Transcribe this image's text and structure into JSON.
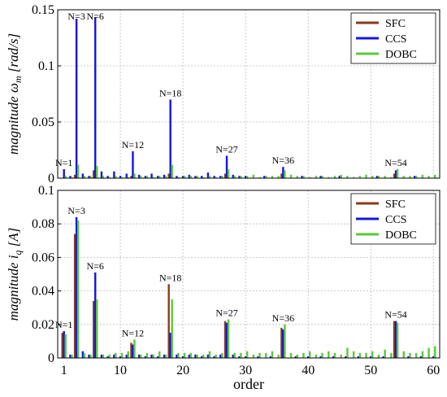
{
  "chart_data": [
    {
      "type": "bar",
      "ylabel": "magnitude ω_m [rad/s]",
      "ylim": [
        0,
        0.15
      ],
      "yticks": [
        0,
        0.05,
        0.1,
        0.15
      ],
      "yticklabels": [
        "0",
        "0.05",
        "0.1",
        "0.15"
      ],
      "xlim": [
        0,
        61
      ],
      "grid": true,
      "legend_position": "top-right",
      "series": [
        {
          "name": "SFC",
          "color": "#8b3a17",
          "x": [
            3,
            6,
            12,
            18,
            27,
            36,
            54
          ],
          "values": [
            0.003,
            0.007,
            0.002,
            0.004,
            0.004,
            0.004,
            0.004
          ]
        },
        {
          "name": "CCS",
          "color": "#1414e6",
          "x": [
            1,
            2,
            3,
            4,
            5,
            6,
            7,
            8,
            9,
            10,
            11,
            12,
            13,
            14,
            15,
            16,
            17,
            18,
            19,
            20,
            21,
            22,
            23,
            24,
            25,
            26,
            27,
            28,
            29,
            30,
            33,
            36,
            39,
            42,
            45,
            51,
            54,
            57
          ],
          "values": [
            0.008,
            0.002,
            0.142,
            0.004,
            0.002,
            0.143,
            0.006,
            0.002,
            0.006,
            0.002,
            0.004,
            0.024,
            0.003,
            0.002,
            0.004,
            0.002,
            0.003,
            0.07,
            0.002,
            0.002,
            0.003,
            0.002,
            0.002,
            0.005,
            0.002,
            0.002,
            0.02,
            0.003,
            0.002,
            0.002,
            0.002,
            0.01,
            0.002,
            0.002,
            0.002,
            0.002,
            0.007,
            0.002
          ]
        },
        {
          "name": "DOBC",
          "color": "#5ac83a",
          "x": [
            1,
            2,
            3,
            4,
            5,
            6,
            7,
            8,
            9,
            10,
            11,
            12,
            13,
            14,
            15,
            16,
            17,
            18,
            19,
            20,
            21,
            22,
            23,
            24,
            25,
            26,
            27,
            28,
            29,
            30,
            31,
            32,
            33,
            34,
            35,
            36,
            37,
            38,
            39,
            40,
            41,
            42,
            43,
            44,
            45,
            46,
            47,
            48,
            49,
            50,
            51,
            52,
            53,
            54,
            55,
            56,
            57,
            58,
            59,
            60
          ],
          "values": [
            0.002,
            0.001,
            0.012,
            0.002,
            0.002,
            0.011,
            0.002,
            0.001,
            0.002,
            0.001,
            0.001,
            0.004,
            0.002,
            0.002,
            0.001,
            0.002,
            0.002,
            0.012,
            0.001,
            0.002,
            0.002,
            0.002,
            0.001,
            0.002,
            0.001,
            0.002,
            0.008,
            0.002,
            0.002,
            0.002,
            0.003,
            0.001,
            0.002,
            0.002,
            0.002,
            0.007,
            0.003,
            0.002,
            0.002,
            0.001,
            0.002,
            0.002,
            0.001,
            0.002,
            0.003,
            0.002,
            0.001,
            0.002,
            0.003,
            0.002,
            0.002,
            0.002,
            0.001,
            0.008,
            0.002,
            0.002,
            0.002,
            0.003,
            0.002,
            0.003
          ]
        }
      ],
      "annotations": [
        {
          "text": "N=1",
          "x": 1,
          "y": 0.008
        },
        {
          "text": "N=3",
          "x": 3,
          "y": 0.142
        },
        {
          "text": "N=6",
          "x": 6,
          "y": 0.143
        },
        {
          "text": "N=12",
          "x": 12,
          "y": 0.024
        },
        {
          "text": "N=18",
          "x": 18,
          "y": 0.07
        },
        {
          "text": "N=27",
          "x": 27,
          "y": 0.02
        },
        {
          "text": "N=36",
          "x": 36,
          "y": 0.01
        },
        {
          "text": "N=54",
          "x": 54,
          "y": 0.008
        }
      ]
    },
    {
      "type": "bar",
      "ylabel": "magnitude i_q [A]",
      "xlabel": "order",
      "ylim": [
        0,
        0.1
      ],
      "yticks": [
        0,
        0.02,
        0.04,
        0.06,
        0.08,
        0.1
      ],
      "yticklabels": [
        "0",
        "0.02",
        "0.04",
        "0.06",
        "0.08",
        "0.1"
      ],
      "xlim": [
        0,
        61
      ],
      "xticks": [
        1,
        10,
        20,
        30,
        40,
        50,
        60
      ],
      "grid": true,
      "legend_position": "top-right",
      "series": [
        {
          "name": "SFC",
          "color": "#8b3a17",
          "x": [
            1,
            3,
            6,
            12,
            18,
            27,
            36,
            54
          ],
          "values": [
            0.015,
            0.074,
            0.034,
            0.009,
            0.044,
            0.022,
            0.018,
            0.022
          ]
        },
        {
          "name": "CCS",
          "color": "#1414e6",
          "x": [
            1,
            2,
            3,
            4,
            5,
            6,
            7,
            8,
            9,
            10,
            11,
            12,
            13,
            14,
            15,
            16,
            17,
            18,
            19,
            20,
            21,
            22,
            23,
            24,
            25,
            26,
            27,
            28,
            29,
            30,
            32,
            34,
            36,
            38,
            40,
            42,
            44,
            46,
            48,
            50,
            52,
            54,
            56,
            58,
            60
          ],
          "values": [
            0.016,
            0.002,
            0.084,
            0.004,
            0.002,
            0.051,
            0.002,
            0.001,
            0.002,
            0.001,
            0.002,
            0.008,
            0.002,
            0.001,
            0.002,
            0.001,
            0.002,
            0.015,
            0.002,
            0.001,
            0.002,
            0.002,
            0.001,
            0.002,
            0.001,
            0.002,
            0.021,
            0.002,
            0.001,
            0.001,
            0.001,
            0.001,
            0.017,
            0.001,
            0.001,
            0.001,
            0.001,
            0.001,
            0.001,
            0.001,
            0.001,
            0.022,
            0.001,
            0.001,
            0.001
          ]
        },
        {
          "name": "DOBC",
          "color": "#5ac83a",
          "x": [
            1,
            2,
            3,
            4,
            5,
            6,
            7,
            8,
            9,
            10,
            11,
            12,
            13,
            14,
            15,
            16,
            17,
            18,
            19,
            20,
            21,
            22,
            23,
            24,
            25,
            26,
            27,
            28,
            29,
            30,
            31,
            32,
            33,
            34,
            35,
            36,
            37,
            38,
            39,
            40,
            41,
            42,
            43,
            44,
            45,
            46,
            47,
            48,
            49,
            50,
            51,
            52,
            53,
            54,
            55,
            56,
            57,
            58,
            59,
            60
          ],
          "values": [
            0.014,
            0.002,
            0.082,
            0.003,
            0.002,
            0.035,
            0.002,
            0.002,
            0.003,
            0.003,
            0.004,
            0.011,
            0.002,
            0.003,
            0.002,
            0.004,
            0.002,
            0.035,
            0.003,
            0.003,
            0.003,
            0.002,
            0.002,
            0.004,
            0.002,
            0.003,
            0.023,
            0.003,
            0.003,
            0.004,
            0.002,
            0.003,
            0.003,
            0.004,
            0.002,
            0.02,
            0.003,
            0.002,
            0.003,
            0.004,
            0.002,
            0.003,
            0.004,
            0.003,
            0.002,
            0.006,
            0.004,
            0.003,
            0.003,
            0.004,
            0.002,
            0.005,
            0.003,
            0.021,
            0.004,
            0.003,
            0.003,
            0.004,
            0.006,
            0.007
          ]
        }
      ],
      "annotations": [
        {
          "text": "N=1",
          "x": 1,
          "y": 0.016
        },
        {
          "text": "N=3",
          "x": 3,
          "y": 0.084
        },
        {
          "text": "N=6",
          "x": 6,
          "y": 0.051
        },
        {
          "text": "N=12",
          "x": 12,
          "y": 0.011
        },
        {
          "text": "N=18",
          "x": 18,
          "y": 0.044
        },
        {
          "text": "N=27",
          "x": 27,
          "y": 0.023
        },
        {
          "text": "N=36",
          "x": 36,
          "y": 0.02
        },
        {
          "text": "N=54",
          "x": 54,
          "y": 0.022
        }
      ]
    }
  ]
}
